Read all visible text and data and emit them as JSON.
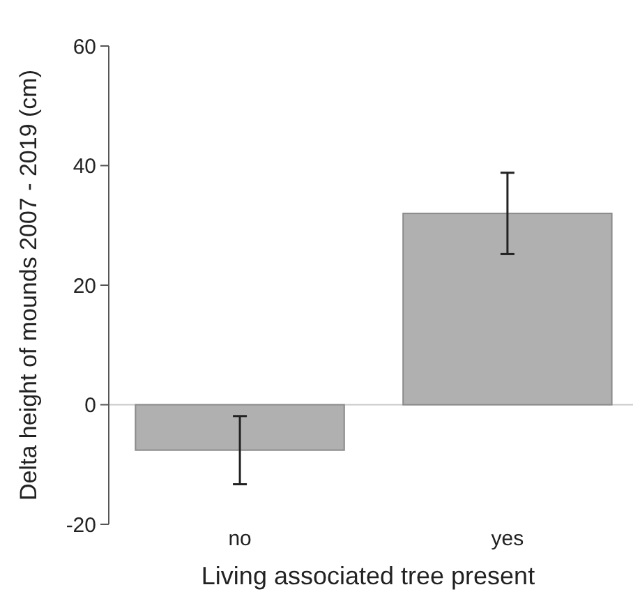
{
  "chart_data": {
    "type": "bar",
    "xlabel": "Living associated tree present",
    "ylabel": "Delta height of mounds 2007 - 2019 (cm)",
    "categories": [
      "no",
      "yes"
    ],
    "values": [
      -7.6,
      32
    ],
    "errors": [
      5.7,
      6.8
    ],
    "color": "#b0b0b0",
    "ylim": [
      -20,
      60
    ],
    "yticks": [
      -20,
      0,
      20,
      40,
      60
    ],
    "grid": false,
    "ref_lines": [
      {
        "axis": "y",
        "value": 0,
        "color": "#c8c8c8"
      }
    ]
  }
}
